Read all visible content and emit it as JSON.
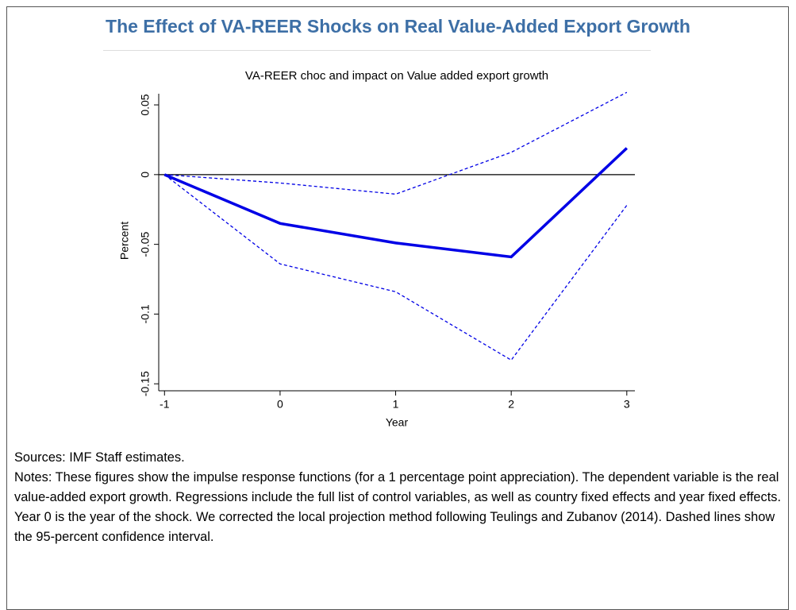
{
  "title": "The Effect of VA-REER Shocks on Real Value-Added Export Growth",
  "chart_data": {
    "type": "line",
    "title": "VA-REER choc and impact on Value added export growth",
    "x_label": "Year",
    "y_label": "Percent",
    "x": [
      -1,
      0,
      1,
      2,
      3
    ],
    "series": [
      {
        "color": "#0000e6",
        "dashed": false,
        "values": [
          0,
          -0.035,
          -0.049,
          -0.059,
          0.019
        ]
      },
      {
        "color": "#0000e6",
        "dashed": true,
        "values": [
          0,
          -0.006,
          -0.014,
          0.016,
          0.059
        ]
      },
      {
        "color": "#0000e6",
        "dashed": true,
        "values": [
          0,
          -0.064,
          -0.084,
          -0.133,
          -0.022
        ]
      }
    ],
    "hline": 0,
    "xlim": [
      -1.05,
      3.07
    ],
    "xticks": [
      -1,
      0,
      1,
      2,
      3
    ],
    "ylim": [
      -0.155,
      0.058
    ],
    "yticks": [
      0.05,
      0,
      -0.05,
      -0.1,
      -0.15
    ],
    "grid": false
  },
  "sources": "Sources: IMF Staff estimates.",
  "notes": "Notes: These figures show the impulse response functions (for a 1 percentage point appreciation). The dependent variable is the real value-added export growth. Regressions include the full list of control variables, as well as country fixed effects and year fixed effects. Year 0 is the year of the shock. We corrected the local projection method following Teulings and Zubanov (2014). Dashed lines show the 95-percent confidence interval."
}
